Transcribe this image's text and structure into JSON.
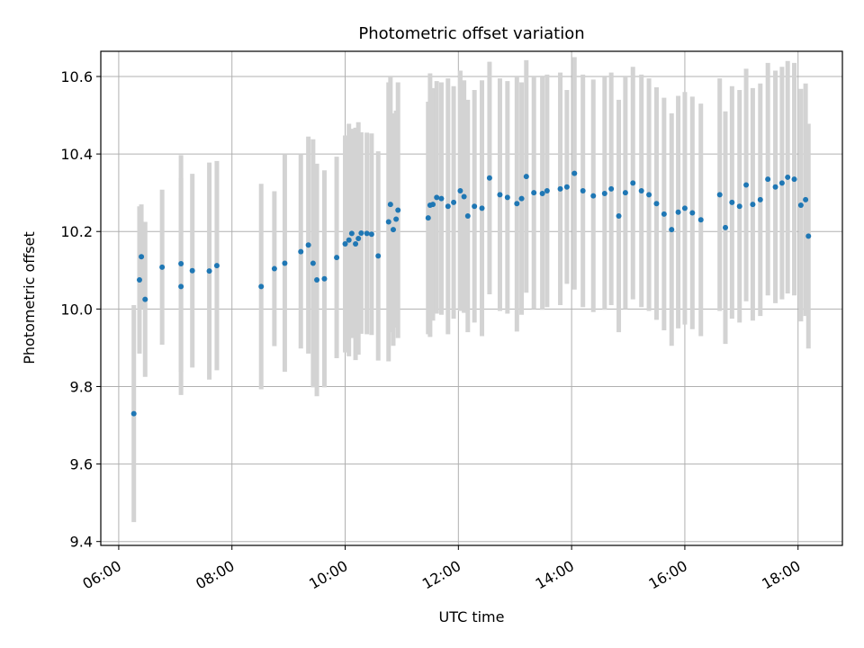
{
  "chart_data": {
    "type": "scatter",
    "title": "Photometric offset variation",
    "xlabel": "UTC time",
    "ylabel": "Photometric offset",
    "xlim": [
      "05:41",
      "18:47"
    ],
    "ylim": [
      9.39,
      10.665
    ],
    "x_ticks": [
      "06:00",
      "08:00",
      "10:00",
      "12:00",
      "14:00",
      "16:00",
      "18:00"
    ],
    "y_ticks": [
      9.4,
      9.6,
      9.8,
      10.0,
      10.2,
      10.4,
      10.6
    ],
    "grid": true,
    "colors": {
      "point": "#1f77b4",
      "errorbar": "#d3d3d3",
      "grid": "#b0b0b0"
    },
    "series": [
      {
        "x": [
          "06:16",
          "06:22",
          "06:24",
          "06:28",
          "06:46",
          "07:06",
          "07:06",
          "07:18",
          "07:36",
          "07:44",
          "08:31",
          "08:45",
          "08:56",
          "09:13",
          "09:21",
          "09:26",
          "09:30",
          "09:38",
          "09:51",
          "10:00",
          "10:04",
          "10:07",
          "10:11",
          "10:14",
          "10:17",
          "10:23",
          "10:28",
          "10:35",
          "10:46",
          "10:48",
          "10:51",
          "10:54",
          "10:56",
          "11:28",
          "11:30",
          "11:33",
          "11:37",
          "11:42",
          "11:49",
          "11:55",
          "12:02",
          "12:06",
          "12:10",
          "12:17",
          "12:25",
          "12:33",
          "12:44",
          "12:52",
          "13:02",
          "13:07",
          "13:12",
          "13:20",
          "13:29",
          "13:34",
          "13:48",
          "13:55",
          "14:03",
          "14:12",
          "14:23",
          "14:35",
          "14:42",
          "14:50",
          "14:57",
          "15:05",
          "15:14",
          "15:22",
          "15:30",
          "15:38",
          "15:46",
          "15:53",
          "16:00",
          "16:08",
          "16:17",
          "16:37",
          "16:43",
          "16:50",
          "16:58",
          "17:05",
          "17:12",
          "17:20",
          "17:28",
          "17:36",
          "17:43",
          "17:49",
          "17:56",
          "18:03",
          "18:08",
          "18:11"
        ],
        "y": [
          9.73,
          10.075,
          10.135,
          10.025,
          10.108,
          10.117,
          10.058,
          10.099,
          10.098,
          10.112,
          10.058,
          10.104,
          10.118,
          10.148,
          10.165,
          10.118,
          10.075,
          10.078,
          10.133,
          10.168,
          10.178,
          10.195,
          10.168,
          10.182,
          10.196,
          10.195,
          10.193,
          10.137,
          10.225,
          10.27,
          10.205,
          10.232,
          10.255,
          10.235,
          10.268,
          10.27,
          10.288,
          10.285,
          10.265,
          10.275,
          10.305,
          10.29,
          10.24,
          10.265,
          10.26,
          10.338,
          10.295,
          10.288,
          10.272,
          10.285,
          10.342,
          10.3,
          10.298,
          10.305,
          10.31,
          10.315,
          10.35,
          10.305,
          10.292,
          10.298,
          10.31,
          10.24,
          10.3,
          10.325,
          10.305,
          10.295,
          10.272,
          10.245,
          10.205,
          10.25,
          10.26,
          10.248,
          10.23,
          10.295,
          10.21,
          10.275,
          10.265,
          10.32,
          10.27,
          10.282,
          10.335,
          10.315,
          10.325,
          10.34,
          10.335,
          10.268,
          10.282,
          10.188
        ],
        "err": [
          0.28,
          0.19,
          0.135,
          0.2,
          0.2,
          0.28,
          0.28,
          0.25,
          0.28,
          0.27,
          0.265,
          0.2,
          0.28,
          0.25,
          0.28,
          0.32,
          0.3,
          0.28,
          0.26,
          0.28,
          0.3,
          0.27,
          0.3,
          0.3,
          0.26,
          0.26,
          0.26,
          0.27,
          0.36,
          0.33,
          0.3,
          0.28,
          0.33,
          0.3,
          0.34,
          0.3,
          0.3,
          0.3,
          0.33,
          0.3,
          0.31,
          0.3,
          0.3,
          0.3,
          0.33,
          0.3,
          0.3,
          0.3,
          0.33,
          0.3,
          0.3,
          0.3,
          0.3,
          0.3,
          0.3,
          0.25,
          0.3,
          0.3,
          0.3,
          0.3,
          0.3,
          0.3,
          0.3,
          0.3,
          0.3,
          0.3,
          0.3,
          0.3,
          0.3,
          0.3,
          0.3,
          0.3,
          0.3,
          0.3,
          0.3,
          0.3,
          0.3,
          0.3,
          0.3,
          0.3,
          0.3,
          0.3,
          0.3,
          0.3,
          0.3,
          0.3,
          0.3,
          0.29
        ]
      }
    ]
  }
}
